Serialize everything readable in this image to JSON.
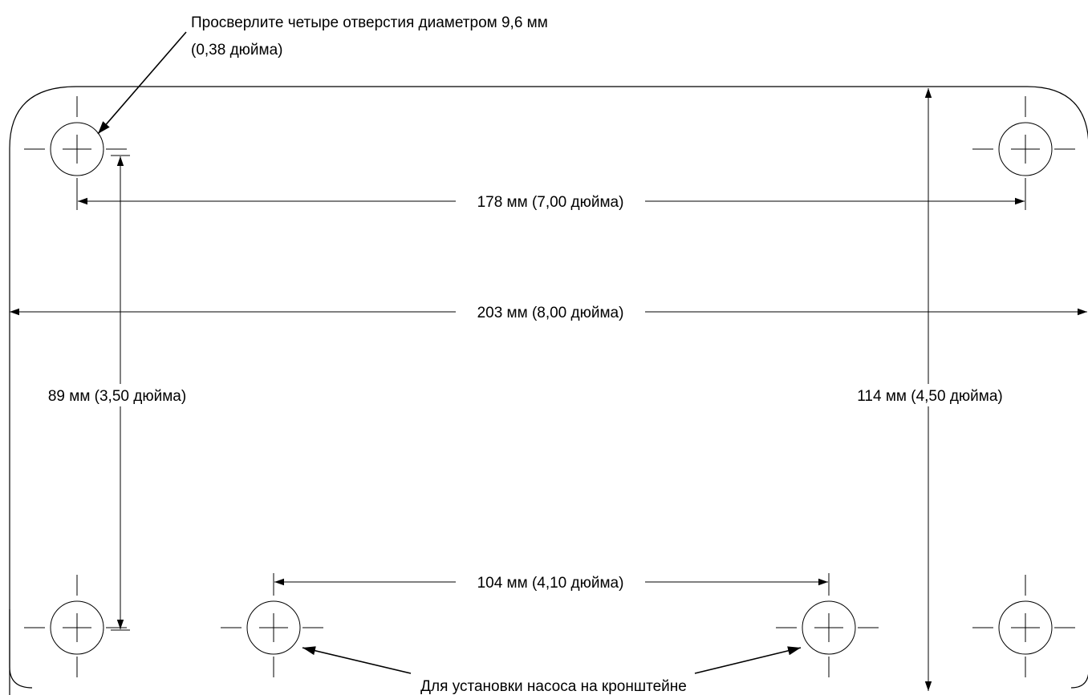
{
  "drill_note": {
    "line1": "Просверлите четыре отверстия диаметром 9,6 мм",
    "line2": "(0,38 дюйма)"
  },
  "dimensions": {
    "hole_spacing_horizontal": "178 мм (7,00 дюйма)",
    "overall_width": "203 мм (8,00 дюйма)",
    "hole_spacing_vertical": "89 мм (3,50 дюйма)",
    "overall_height": "114 мм (4,50 дюйма)",
    "bracket_hole_spacing": "104 мм (4,10 дюйма)"
  },
  "bracket_note": "Для установки насоса на кронштейне"
}
